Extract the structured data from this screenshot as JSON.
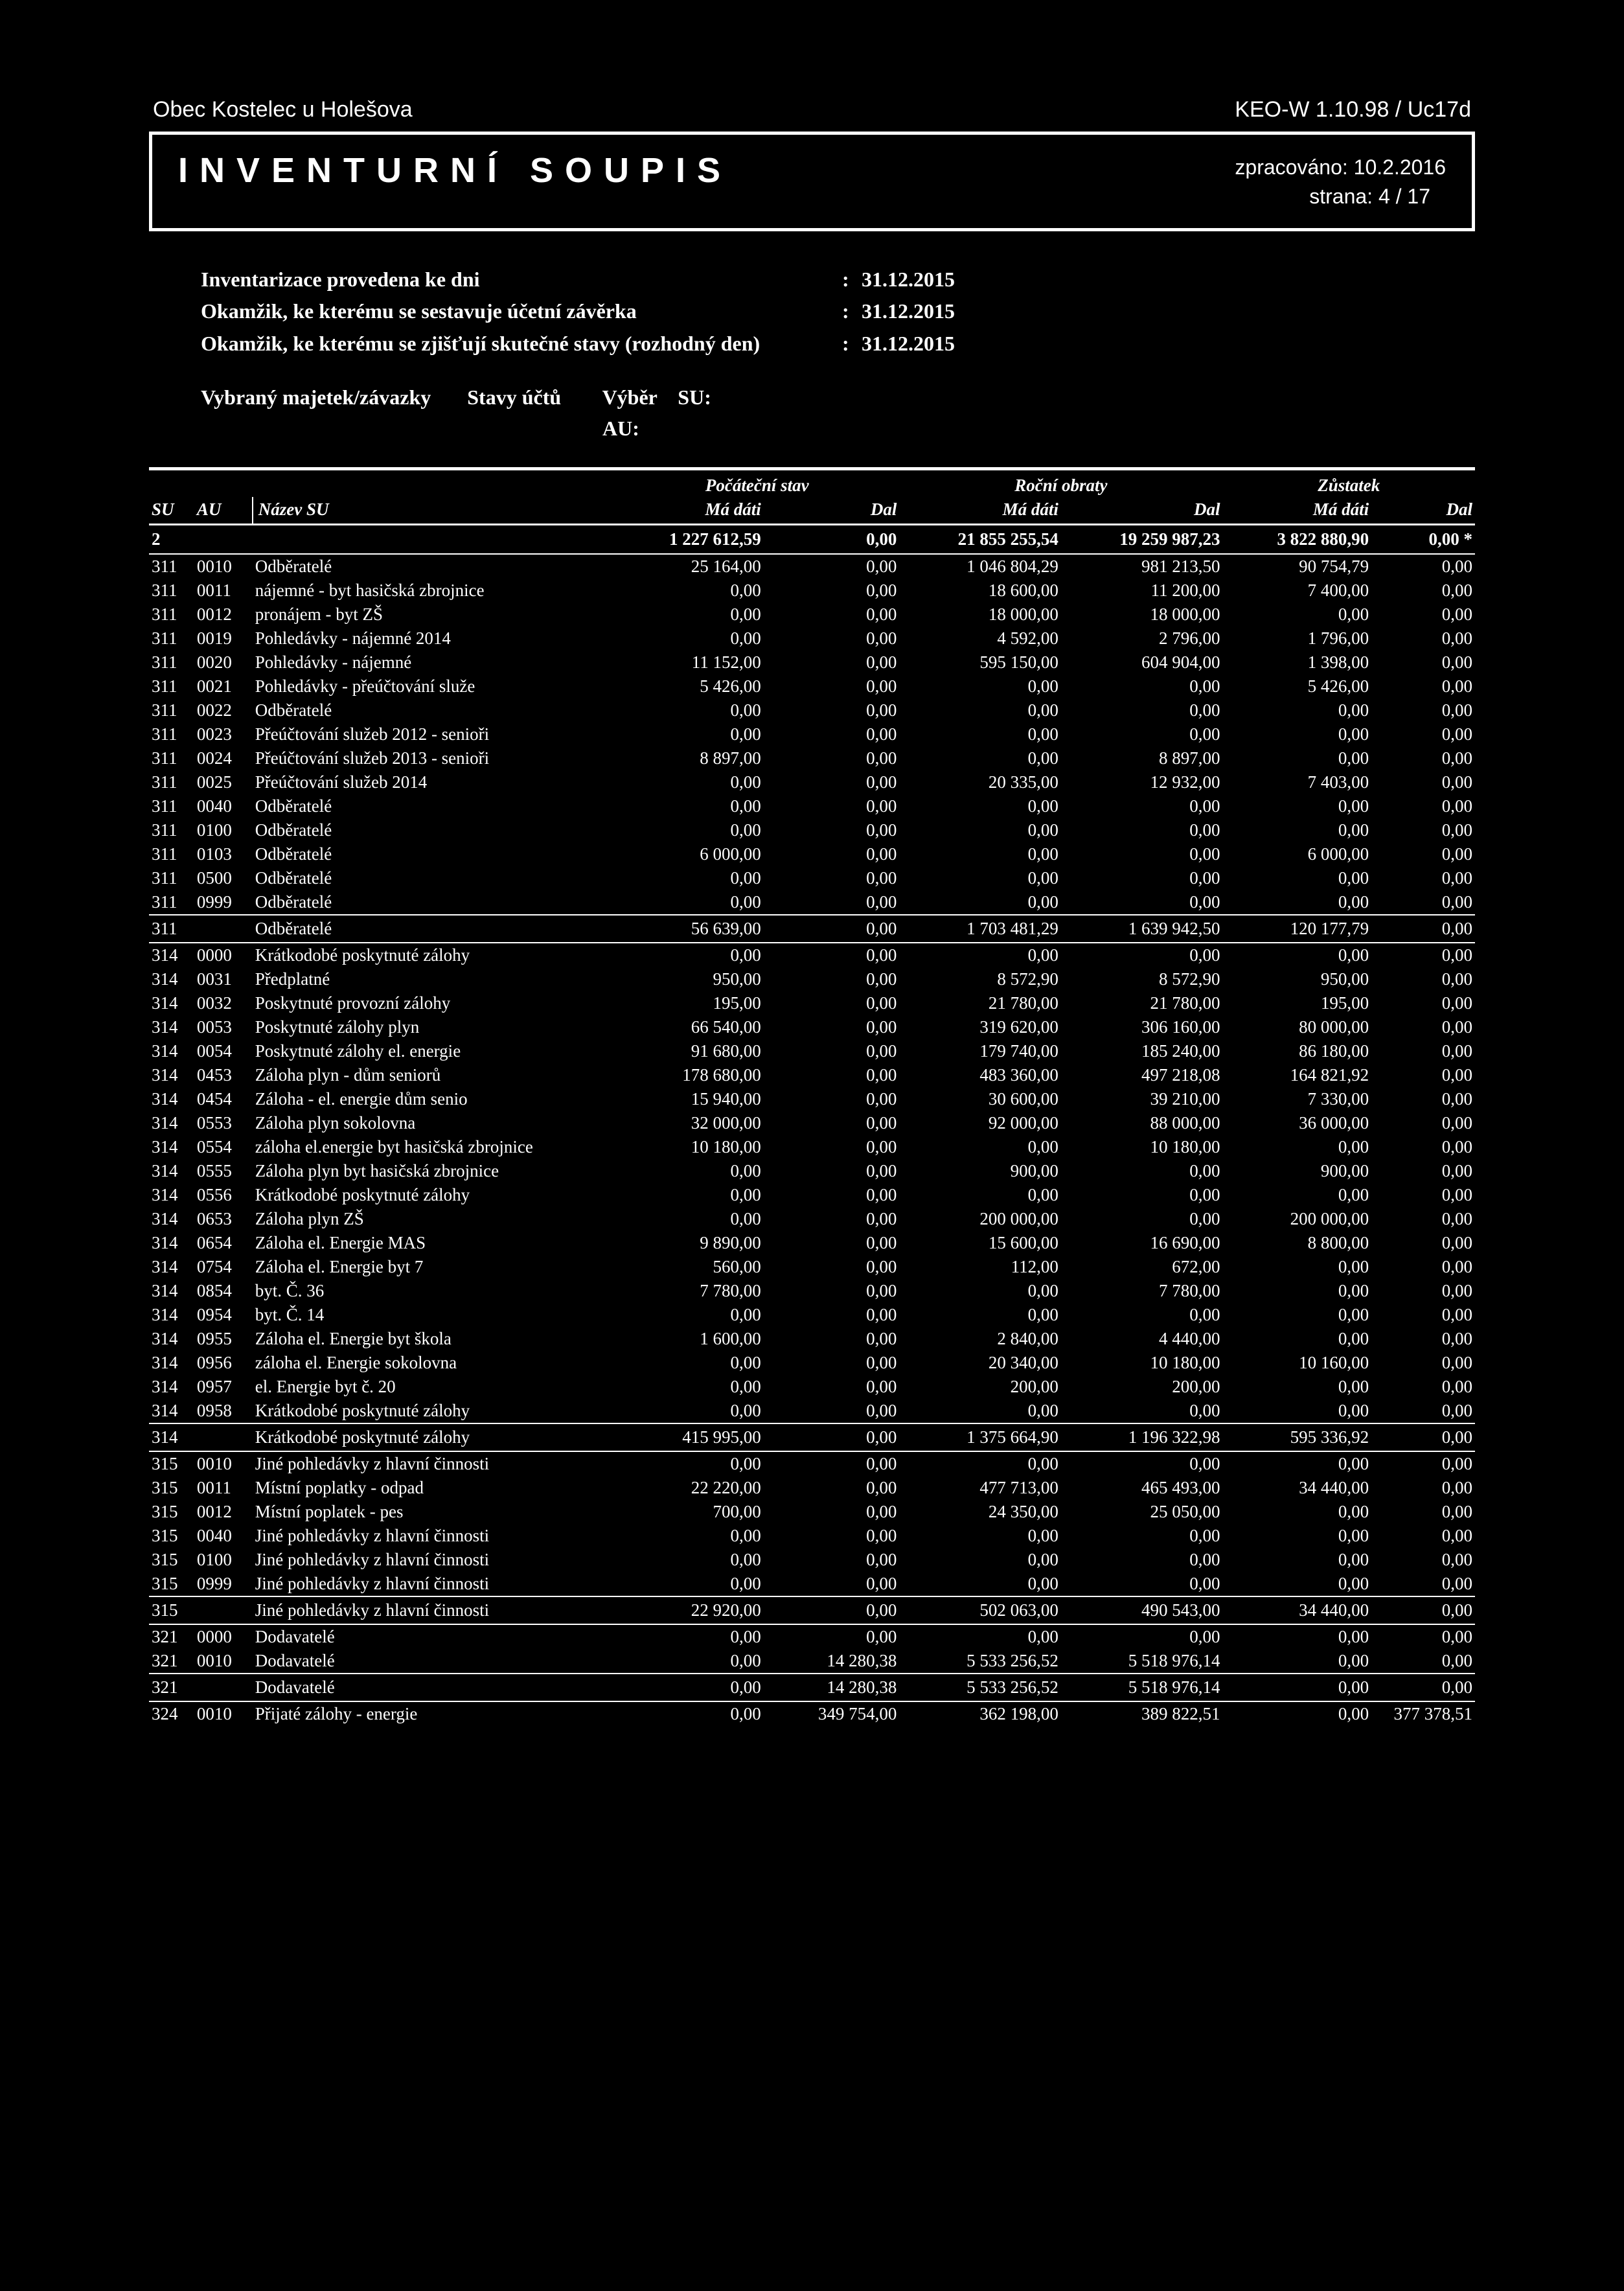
{
  "top": {
    "left": "Obec Kostelec u Holešova",
    "right": "KEO-W 1.10.98 / Uc17d"
  },
  "titlebox": {
    "title": "INVENTURNÍ  SOUPIS",
    "processed_label": "zpracováno:",
    "processed_value": "10.2.2016",
    "page_label": "strana:",
    "page_value": "4 / 17"
  },
  "info": {
    "r1_label": "Inventarizace provedena ke dni",
    "r1_value": "31.12.2015",
    "r2_label": "Okamžik, ke kterému se sestavuje účetní závěrka",
    "r2_value": "31.12.2015",
    "r3_label": "Okamžik, ke kterému se zjišťují skutečné stavy (rozhodný den)",
    "r3_value": "31.12.2015"
  },
  "selection": {
    "l1a": "Vybraný majetek/závazky",
    "l1b": "Stavy účtů",
    "l1c": "Výběr",
    "l1d": "SU:",
    "l2": "AU:"
  },
  "header": {
    "grp_poc": "Počáteční stav",
    "grp_obr": "Roční obraty",
    "grp_zus": "Zůstatek",
    "su": "SU",
    "au": "AU",
    "name": "Název SU",
    "madati": "Má dáti",
    "dal": "Dal"
  },
  "totals": {
    "su": "2",
    "v1": "1 227 612,59",
    "v2": "0,00",
    "v3": "21 855 255,54",
    "v4": "19 259 987,23",
    "v5": "3 822 880,90",
    "v6": "0,00"
  },
  "rows": [
    {
      "su": "311",
      "au": "0010",
      "name": "Odběratelé",
      "v1": "25 164,00",
      "v2": "0,00",
      "v3": "1 046 804,29",
      "v4": "981 213,50",
      "v5": "90 754,79",
      "v6": "0,00"
    },
    {
      "su": "311",
      "au": "0011",
      "name": "nájemné - byt hasičská zbrojnice",
      "v1": "0,00",
      "v2": "0,00",
      "v3": "18 600,00",
      "v4": "11 200,00",
      "v5": "7 400,00",
      "v6": "0,00"
    },
    {
      "su": "311",
      "au": "0012",
      "name": "pronájem - byt ZŠ",
      "v1": "0,00",
      "v2": "0,00",
      "v3": "18 000,00",
      "v4": "18 000,00",
      "v5": "0,00",
      "v6": "0,00"
    },
    {
      "su": "311",
      "au": "0019",
      "name": "Pohledávky - nájemné 2014",
      "v1": "0,00",
      "v2": "0,00",
      "v3": "4 592,00",
      "v4": "2 796,00",
      "v5": "1 796,00",
      "v6": "0,00"
    },
    {
      "su": "311",
      "au": "0020",
      "name": "Pohledávky - nájemné",
      "v1": "11 152,00",
      "v2": "0,00",
      "v3": "595 150,00",
      "v4": "604 904,00",
      "v5": "1 398,00",
      "v6": "0,00"
    },
    {
      "su": "311",
      "au": "0021",
      "name": "Pohledávky - přeúčtování služe",
      "v1": "5 426,00",
      "v2": "0,00",
      "v3": "0,00",
      "v4": "0,00",
      "v5": "5 426,00",
      "v6": "0,00"
    },
    {
      "su": "311",
      "au": "0022",
      "name": "Odběratelé",
      "v1": "0,00",
      "v2": "0,00",
      "v3": "0,00",
      "v4": "0,00",
      "v5": "0,00",
      "v6": "0,00"
    },
    {
      "su": "311",
      "au": "0023",
      "name": "Přeúčtování služeb 2012 - senioři",
      "v1": "0,00",
      "v2": "0,00",
      "v3": "0,00",
      "v4": "0,00",
      "v5": "0,00",
      "v6": "0,00"
    },
    {
      "su": "311",
      "au": "0024",
      "name": "Přeúčtování služeb 2013 - senioři",
      "v1": "8 897,00",
      "v2": "0,00",
      "v3": "0,00",
      "v4": "8 897,00",
      "v5": "0,00",
      "v6": "0,00"
    },
    {
      "su": "311",
      "au": "0025",
      "name": "Přeúčtování služeb 2014",
      "v1": "0,00",
      "v2": "0,00",
      "v3": "20 335,00",
      "v4": "12 932,00",
      "v5": "7 403,00",
      "v6": "0,00"
    },
    {
      "su": "311",
      "au": "0040",
      "name": "Odběratelé",
      "v1": "0,00",
      "v2": "0,00",
      "v3": "0,00",
      "v4": "0,00",
      "v5": "0,00",
      "v6": "0,00"
    },
    {
      "su": "311",
      "au": "0100",
      "name": "Odběratelé",
      "v1": "0,00",
      "v2": "0,00",
      "v3": "0,00",
      "v4": "0,00",
      "v5": "0,00",
      "v6": "0,00"
    },
    {
      "su": "311",
      "au": "0103",
      "name": "Odběratelé",
      "v1": "6 000,00",
      "v2": "0,00",
      "v3": "0,00",
      "v4": "0,00",
      "v5": "6 000,00",
      "v6": "0,00"
    },
    {
      "su": "311",
      "au": "0500",
      "name": "Odběratelé",
      "v1": "0,00",
      "v2": "0,00",
      "v3": "0,00",
      "v4": "0,00",
      "v5": "0,00",
      "v6": "0,00"
    },
    {
      "su": "311",
      "au": "0999",
      "name": "Odběratelé",
      "v1": "0,00",
      "v2": "0,00",
      "v3": "0,00",
      "v4": "0,00",
      "v5": "0,00",
      "v6": "0,00"
    },
    {
      "su": "311",
      "au": "",
      "name": "Odběratelé",
      "v1": "56 639,00",
      "v2": "0,00",
      "v3": "1 703 481,29",
      "v4": "1 639 942,50",
      "v5": "120 177,79",
      "v6": "0,00",
      "subtotal": true
    },
    {
      "su": "314",
      "au": "0000",
      "name": "Krátkodobé poskytnuté zálohy",
      "v1": "0,00",
      "v2": "0,00",
      "v3": "0,00",
      "v4": "0,00",
      "v5": "0,00",
      "v6": "0,00"
    },
    {
      "su": "314",
      "au": "0031",
      "name": "Předplatné",
      "v1": "950,00",
      "v2": "0,00",
      "v3": "8 572,90",
      "v4": "8 572,90",
      "v5": "950,00",
      "v6": "0,00"
    },
    {
      "su": "314",
      "au": "0032",
      "name": "Poskytnuté provozní zálohy",
      "v1": "195,00",
      "v2": "0,00",
      "v3": "21 780,00",
      "v4": "21 780,00",
      "v5": "195,00",
      "v6": "0,00"
    },
    {
      "su": "314",
      "au": "0053",
      "name": "Poskytnuté zálohy plyn",
      "v1": "66 540,00",
      "v2": "0,00",
      "v3": "319 620,00",
      "v4": "306 160,00",
      "v5": "80 000,00",
      "v6": "0,00"
    },
    {
      "su": "314",
      "au": "0054",
      "name": "Poskytnuté zálohy el. energie",
      "v1": "91 680,00",
      "v2": "0,00",
      "v3": "179 740,00",
      "v4": "185 240,00",
      "v5": "86 180,00",
      "v6": "0,00"
    },
    {
      "su": "314",
      "au": "0453",
      "name": "Záloha plyn - dům seniorů",
      "v1": "178 680,00",
      "v2": "0,00",
      "v3": "483 360,00",
      "v4": "497 218,08",
      "v5": "164 821,92",
      "v6": "0,00"
    },
    {
      "su": "314",
      "au": "0454",
      "name": "Záloha - el. energie dům senio",
      "v1": "15 940,00",
      "v2": "0,00",
      "v3": "30 600,00",
      "v4": "39 210,00",
      "v5": "7 330,00",
      "v6": "0,00"
    },
    {
      "su": "314",
      "au": "0553",
      "name": "Záloha plyn sokolovna",
      "v1": "32 000,00",
      "v2": "0,00",
      "v3": "92 000,00",
      "v4": "88 000,00",
      "v5": "36 000,00",
      "v6": "0,00"
    },
    {
      "su": "314",
      "au": "0554",
      "name": "záloha el.energie byt hasičská zbrojnice",
      "v1": "10 180,00",
      "v2": "0,00",
      "v3": "0,00",
      "v4": "10 180,00",
      "v5": "0,00",
      "v6": "0,00"
    },
    {
      "su": "314",
      "au": "0555",
      "name": "Záloha plyn byt hasičská zbrojnice",
      "v1": "0,00",
      "v2": "0,00",
      "v3": "900,00",
      "v4": "0,00",
      "v5": "900,00",
      "v6": "0,00"
    },
    {
      "su": "314",
      "au": "0556",
      "name": "Krátkodobé poskytnuté zálohy",
      "v1": "0,00",
      "v2": "0,00",
      "v3": "0,00",
      "v4": "0,00",
      "v5": "0,00",
      "v6": "0,00"
    },
    {
      "su": "314",
      "au": "0653",
      "name": "Záloha plyn ZŠ",
      "v1": "0,00",
      "v2": "0,00",
      "v3": "200 000,00",
      "v4": "0,00",
      "v5": "200 000,00",
      "v6": "0,00"
    },
    {
      "su": "314",
      "au": "0654",
      "name": "Záloha el. Energie MAS",
      "v1": "9 890,00",
      "v2": "0,00",
      "v3": "15 600,00",
      "v4": "16 690,00",
      "v5": "8 800,00",
      "v6": "0,00"
    },
    {
      "su": "314",
      "au": "0754",
      "name": "Záloha el. Energie byt 7",
      "v1": "560,00",
      "v2": "0,00",
      "v3": "112,00",
      "v4": "672,00",
      "v5": "0,00",
      "v6": "0,00"
    },
    {
      "su": "314",
      "au": "0854",
      "name": "byt. Č. 36",
      "v1": "7 780,00",
      "v2": "0,00",
      "v3": "0,00",
      "v4": "7 780,00",
      "v5": "0,00",
      "v6": "0,00"
    },
    {
      "su": "314",
      "au": "0954",
      "name": "byt. Č. 14",
      "v1": "0,00",
      "v2": "0,00",
      "v3": "0,00",
      "v4": "0,00",
      "v5": "0,00",
      "v6": "0,00"
    },
    {
      "su": "314",
      "au": "0955",
      "name": "Záloha el. Energie byt škola",
      "v1": "1 600,00",
      "v2": "0,00",
      "v3": "2 840,00",
      "v4": "4 440,00",
      "v5": "0,00",
      "v6": "0,00"
    },
    {
      "su": "314",
      "au": "0956",
      "name": "záloha el. Energie sokolovna",
      "v1": "0,00",
      "v2": "0,00",
      "v3": "20 340,00",
      "v4": "10 180,00",
      "v5": "10 160,00",
      "v6": "0,00"
    },
    {
      "su": "314",
      "au": "0957",
      "name": "el. Energie byt č. 20",
      "v1": "0,00",
      "v2": "0,00",
      "v3": "200,00",
      "v4": "200,00",
      "v5": "0,00",
      "v6": "0,00"
    },
    {
      "su": "314",
      "au": "0958",
      "name": "Krátkodobé poskytnuté zálohy",
      "v1": "0,00",
      "v2": "0,00",
      "v3": "0,00",
      "v4": "0,00",
      "v5": "0,00",
      "v6": "0,00"
    },
    {
      "su": "314",
      "au": "",
      "name": "Krátkodobé poskytnuté zálohy",
      "v1": "415 995,00",
      "v2": "0,00",
      "v3": "1 375 664,90",
      "v4": "1 196 322,98",
      "v5": "595 336,92",
      "v6": "0,00",
      "subtotal": true
    },
    {
      "su": "315",
      "au": "0010",
      "name": "Jiné pohledávky z hlavní činnosti",
      "v1": "0,00",
      "v2": "0,00",
      "v3": "0,00",
      "v4": "0,00",
      "v5": "0,00",
      "v6": "0,00"
    },
    {
      "su": "315",
      "au": "0011",
      "name": "Místní poplatky - odpad",
      "v1": "22 220,00",
      "v2": "0,00",
      "v3": "477 713,00",
      "v4": "465 493,00",
      "v5": "34 440,00",
      "v6": "0,00"
    },
    {
      "su": "315",
      "au": "0012",
      "name": "Místní poplatek - pes",
      "v1": "700,00",
      "v2": "0,00",
      "v3": "24 350,00",
      "v4": "25 050,00",
      "v5": "0,00",
      "v6": "0,00"
    },
    {
      "su": "315",
      "au": "0040",
      "name": "Jiné pohledávky z hlavní činnosti",
      "v1": "0,00",
      "v2": "0,00",
      "v3": "0,00",
      "v4": "0,00",
      "v5": "0,00",
      "v6": "0,00"
    },
    {
      "su": "315",
      "au": "0100",
      "name": "Jiné pohledávky z hlavní činnosti",
      "v1": "0,00",
      "v2": "0,00",
      "v3": "0,00",
      "v4": "0,00",
      "v5": "0,00",
      "v6": "0,00"
    },
    {
      "su": "315",
      "au": "0999",
      "name": "Jiné pohledávky z hlavní činnosti",
      "v1": "0,00",
      "v2": "0,00",
      "v3": "0,00",
      "v4": "0,00",
      "v5": "0,00",
      "v6": "0,00"
    },
    {
      "su": "315",
      "au": "",
      "name": "Jiné pohledávky z hlavní činnosti",
      "v1": "22 920,00",
      "v2": "0,00",
      "v3": "502 063,00",
      "v4": "490 543,00",
      "v5": "34 440,00",
      "v6": "0,00",
      "subtotal": true
    },
    {
      "su": "321",
      "au": "0000",
      "name": "Dodavatelé",
      "v1": "0,00",
      "v2": "0,00",
      "v3": "0,00",
      "v4": "0,00",
      "v5": "0,00",
      "v6": "0,00"
    },
    {
      "su": "321",
      "au": "0010",
      "name": "Dodavatelé",
      "v1": "0,00",
      "v2": "14 280,38",
      "v3": "5 533 256,52",
      "v4": "5 518 976,14",
      "v5": "0,00",
      "v6": "0,00"
    },
    {
      "su": "321",
      "au": "",
      "name": "Dodavatelé",
      "v1": "0,00",
      "v2": "14 280,38",
      "v3": "5 533 256,52",
      "v4": "5 518 976,14",
      "v5": "0,00",
      "v6": "0,00",
      "subtotal": true
    },
    {
      "su": "324",
      "au": "0010",
      "name": "Přijaté zálohy - energie",
      "v1": "0,00",
      "v2": "349 754,00",
      "v3": "362 198,00",
      "v4": "389 822,51",
      "v5": "0,00",
      "v6": "377 378,51"
    }
  ]
}
